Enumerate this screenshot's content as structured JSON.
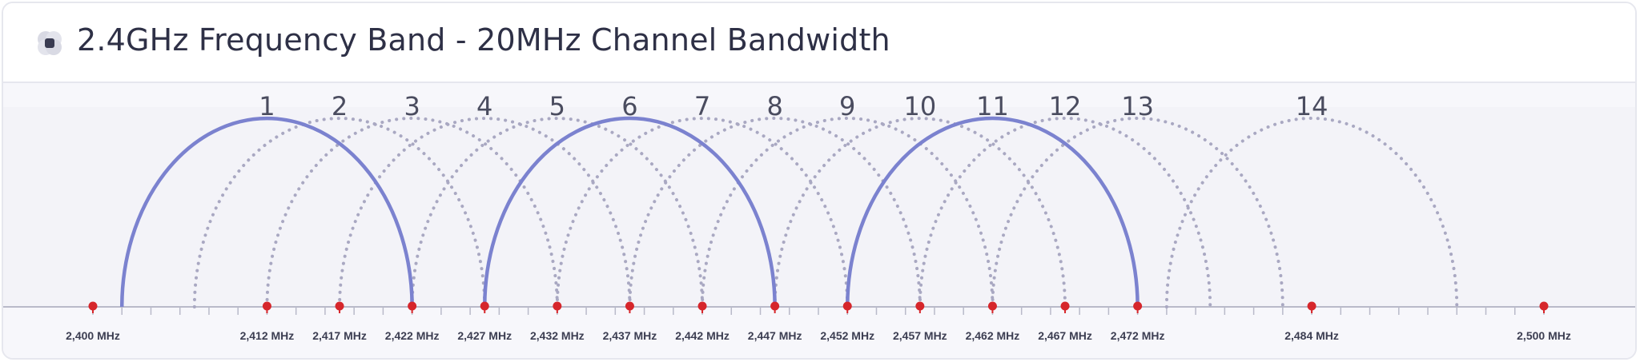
{
  "header": {
    "title": "2.4GHz Frequency Band - 20MHz Channel Bandwidth",
    "icon": "wifi-band-icon"
  },
  "colors": {
    "highlight_arc": "#7b82cf",
    "dotted_arc": "#a9a8c2",
    "marker": "#d6262b",
    "axis": "#b9bac9",
    "label": "#2e3046"
  },
  "diagram": {
    "channel_bandwidth_mhz": 20,
    "highlighted_channels": [
      1,
      6,
      11
    ],
    "channels": [
      {
        "number": "1",
        "center_mhz": 2412
      },
      {
        "number": "2",
        "center_mhz": 2417
      },
      {
        "number": "3",
        "center_mhz": 2422
      },
      {
        "number": "4",
        "center_mhz": 2427
      },
      {
        "number": "5",
        "center_mhz": 2432
      },
      {
        "number": "6",
        "center_mhz": 2437
      },
      {
        "number": "7",
        "center_mhz": 2442
      },
      {
        "number": "8",
        "center_mhz": 2447
      },
      {
        "number": "9",
        "center_mhz": 2452
      },
      {
        "number": "10",
        "center_mhz": 2457
      },
      {
        "number": "11",
        "center_mhz": 2462
      },
      {
        "number": "12",
        "center_mhz": 2467
      },
      {
        "number": "13",
        "center_mhz": 2472
      },
      {
        "number": "14",
        "center_mhz": 2484
      }
    ],
    "frequency_markers": [
      {
        "mhz": 2400,
        "label": "2,400 MHz"
      },
      {
        "mhz": 2412,
        "label": "2,412 MHz"
      },
      {
        "mhz": 2417,
        "label": "2,417 MHz"
      },
      {
        "mhz": 2422,
        "label": "2,422 MHz"
      },
      {
        "mhz": 2427,
        "label": "2,427 MHz"
      },
      {
        "mhz": 2432,
        "label": "2,432 MHz"
      },
      {
        "mhz": 2437,
        "label": "2,437 MHz"
      },
      {
        "mhz": 2442,
        "label": "2,442 MHz"
      },
      {
        "mhz": 2447,
        "label": "2,447 MHz"
      },
      {
        "mhz": 2452,
        "label": "2,452 MHz"
      },
      {
        "mhz": 2457,
        "label": "2,457 MHz"
      },
      {
        "mhz": 2462,
        "label": "2,462 MHz"
      },
      {
        "mhz": 2467,
        "label": "2,467 MHz"
      },
      {
        "mhz": 2472,
        "label": "2,472 MHz"
      },
      {
        "mhz": 2484,
        "label": "2,484 MHz"
      },
      {
        "mhz": 2500,
        "label": "2,500 MHz"
      }
    ]
  }
}
